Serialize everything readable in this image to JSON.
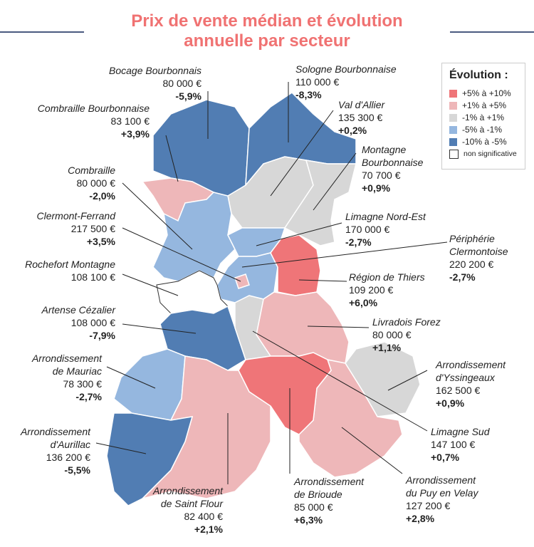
{
  "title": "Prix de vente médian et évolution\nannuelle par secteur",
  "legend": {
    "title": "Évolution :",
    "items": [
      {
        "label": "+5% à +10%",
        "color": "#ef7578"
      },
      {
        "label": "+1% à +5%",
        "color": "#eeb7b9"
      },
      {
        "label": "-1% à +1%",
        "color": "#d7d7d7"
      },
      {
        "label": "-5% à -1%",
        "color": "#95b7df"
      },
      {
        "label": "-10% à -5%",
        "color": "#517db3"
      },
      {
        "label": "non significative",
        "color": "#ffffff"
      }
    ]
  },
  "sectors": {
    "bocage": {
      "name": "Bocage Bourbonnais",
      "price": "80 000 €",
      "evolution": "-5,9%"
    },
    "sologne": {
      "name": "Sologne Bourbonnaise",
      "price": "110 000 €",
      "evolution": "-8,3%"
    },
    "combraille_b": {
      "name": "Combraille Bourbonnaise",
      "price": "83 100 €",
      "evolution": "+3,9%"
    },
    "val_allier": {
      "name": "Val d'Allier",
      "price": "135 300 €",
      "evolution": "+0,2%"
    },
    "montagne_b": {
      "name": "Montagne\nBourbonnaise",
      "price": "70 700 €",
      "evolution": "+0,9%"
    },
    "combraille": {
      "name": "Combraille",
      "price": "80 000 €",
      "evolution": "-2,0%"
    },
    "limagne_ne": {
      "name": "Limagne Nord-Est",
      "price": "170 000 €",
      "evolution": "-2,7%"
    },
    "clermont": {
      "name": "Clermont-Ferrand",
      "price": "217 500 €",
      "evolution": "+3,5%"
    },
    "peripherie": {
      "name": "Périphérie\nClermontoise",
      "price": "220 200 €",
      "evolution": "-2,7%"
    },
    "rochefort": {
      "name": "Rochefort Montagne",
      "price": "108 100 €",
      "evolution": ""
    },
    "thiers": {
      "name": "Région de Thiers",
      "price": "109 200 €",
      "evolution": "+6,0%"
    },
    "artense": {
      "name": "Artense Cézalier",
      "price": "108 000 €",
      "evolution": "-7,9%"
    },
    "livradois": {
      "name": "Livradois Forez",
      "price": "80 000 €",
      "evolution": "+1,1%"
    },
    "mauriac": {
      "name": "Arrondissement\nde Mauriac",
      "price": "78 300 €",
      "evolution": "-2,7%"
    },
    "yssingeaux": {
      "name": "Arrondissement\nd'Yssingeaux",
      "price": "162 500 €",
      "evolution": "+0,9%"
    },
    "aurillac": {
      "name": "Arrondissement\nd'Aurillac",
      "price": "136 200 €",
      "evolution": "-5,5%"
    },
    "limagne_sud": {
      "name": "Limagne Sud",
      "price": "147 100 €",
      "evolution": "+0,7%"
    },
    "saint_flour": {
      "name": "Arrondissement\nde Saint Flour",
      "price": "82 400 €",
      "evolution": "+2,1%"
    },
    "brioude": {
      "name": "Arrondissement\nde Brioude",
      "price": "85 000 €",
      "evolution": "+6,3%"
    },
    "puy": {
      "name": "Arrondissement\ndu Puy en Velay",
      "price": "127 200 €",
      "evolution": "+2,8%"
    }
  }
}
